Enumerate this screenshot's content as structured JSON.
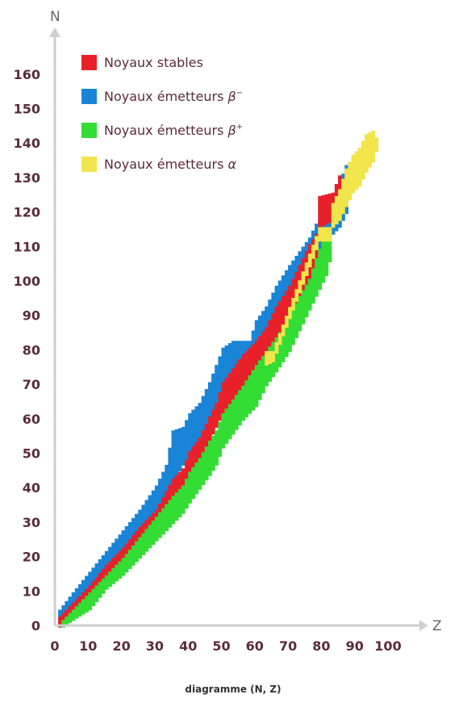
{
  "chart_data": {
    "type": "scatter",
    "title": "",
    "caption": "diagramme (N, Z)",
    "xlabel": "Z",
    "ylabel": "N",
    "xlim": [
      0,
      107
    ],
    "ylim": [
      0,
      172
    ],
    "xticks": [
      0,
      10,
      20,
      30,
      40,
      50,
      60,
      70,
      80,
      90,
      100
    ],
    "yticks": [
      0,
      10,
      20,
      30,
      40,
      50,
      60,
      70,
      80,
      90,
      100,
      110,
      120,
      130,
      140,
      150,
      160
    ],
    "grid": false,
    "legend_placement": "top-left",
    "colors": {
      "stable": "#e8202a",
      "beta_minus": "#1a85d6",
      "beta_plus": "#33dd33",
      "alpha": "#f1e54b",
      "axis": "#cfcfcf",
      "text": "#5b2b3a"
    },
    "legend": [
      {
        "key": "stable",
        "pre": "Noyaux stables",
        "sym": "",
        "sup": ""
      },
      {
        "key": "beta_minus",
        "pre": "Noyaux émetteurs",
        "sym": "β",
        "sup": "−"
      },
      {
        "key": "beta_plus",
        "pre": "Noyaux émetteurs",
        "sym": "β",
        "sup": "+"
      },
      {
        "key": "alpha",
        "pre": "Noyaux émetteurs",
        "sym": "α",
        "sup": ""
      }
    ],
    "series": [
      {
        "key": "beta_minus",
        "bands": [
          [
            1,
            0,
            4
          ],
          [
            5,
            3,
            9
          ],
          [
            10,
            9,
            15
          ],
          [
            15,
            14,
            21
          ],
          [
            20,
            20,
            27
          ],
          [
            25,
            25,
            33
          ],
          [
            30,
            31,
            40
          ],
          [
            33,
            35,
            46
          ],
          [
            35,
            42,
            56
          ],
          [
            38,
            47,
            57
          ],
          [
            40,
            48,
            61
          ],
          [
            43,
            52,
            64
          ],
          [
            46,
            56,
            70
          ],
          [
            48,
            60,
            75
          ],
          [
            50,
            65,
            80
          ],
          [
            53,
            70,
            82
          ],
          [
            56,
            74,
            82
          ],
          [
            58,
            77,
            82
          ],
          [
            60,
            80,
            88
          ],
          [
            63,
            83,
            92
          ],
          [
            66,
            88,
            98
          ],
          [
            70,
            92,
            104
          ],
          [
            73,
            97,
            108
          ],
          [
            76,
            103,
            112
          ],
          [
            78,
            108,
            116
          ],
          [
            81,
            112,
            120
          ],
          [
            85,
            116,
            128
          ],
          [
            87,
            120,
            133
          ]
        ]
      },
      {
        "key": "stable",
        "bands": [
          [
            1,
            0,
            2
          ],
          [
            5,
            4,
            6
          ],
          [
            10,
            9,
            11
          ],
          [
            15,
            15,
            17
          ],
          [
            20,
            19,
            22
          ],
          [
            25,
            26,
            28
          ],
          [
            30,
            30,
            33
          ],
          [
            35,
            38,
            42
          ],
          [
            38,
            40,
            45
          ],
          [
            40,
            44,
            50
          ],
          [
            43,
            48,
            54
          ],
          [
            46,
            54,
            60
          ],
          [
            48,
            58,
            64
          ],
          [
            50,
            62,
            70
          ],
          [
            53,
            66,
            74
          ],
          [
            56,
            70,
            78
          ],
          [
            60,
            76,
            82
          ],
          [
            63,
            80,
            86
          ],
          [
            66,
            84,
            92
          ],
          [
            70,
            90,
            98
          ],
          [
            73,
            94,
            104
          ],
          [
            76,
            100,
            110
          ],
          [
            78,
            106,
            113
          ],
          [
            79,
            116,
            124
          ],
          [
            83,
            118,
            125
          ],
          [
            85,
            122,
            130
          ]
        ]
      },
      {
        "key": "beta_plus",
        "bands": [
          [
            2,
            0,
            1
          ],
          [
            5,
            2,
            4
          ],
          [
            10,
            5,
            9
          ],
          [
            15,
            11,
            14
          ],
          [
            20,
            15,
            19
          ],
          [
            25,
            20,
            25
          ],
          [
            30,
            25,
            31
          ],
          [
            35,
            30,
            37
          ],
          [
            38,
            33,
            40
          ],
          [
            40,
            36,
            44
          ],
          [
            43,
            40,
            48
          ],
          [
            46,
            44,
            53
          ],
          [
            48,
            47,
            56
          ],
          [
            50,
            52,
            61
          ],
          [
            53,
            56,
            65
          ],
          [
            56,
            60,
            69
          ],
          [
            60,
            64,
            75
          ],
          [
            63,
            70,
            79
          ],
          [
            66,
            74,
            83
          ],
          [
            70,
            80,
            89
          ],
          [
            73,
            86,
            95
          ],
          [
            76,
            92,
            100
          ],
          [
            78,
            96,
            106
          ],
          [
            81,
            102,
            114
          ],
          [
            82,
            106,
            114
          ]
        ]
      },
      {
        "key": "alpha",
        "bands": [
          [
            63,
            76,
            79
          ],
          [
            65,
            77,
            79
          ],
          [
            79,
            112,
            115
          ],
          [
            82,
            112,
            115
          ],
          [
            83,
            116,
            122
          ],
          [
            85,
            118,
            126
          ],
          [
            87,
            122,
            132
          ],
          [
            89,
            126,
            136
          ],
          [
            91,
            128,
            138
          ],
          [
            93,
            132,
            142
          ],
          [
            95,
            135,
            143
          ],
          [
            96,
            138,
            141
          ]
        ]
      }
    ]
  }
}
